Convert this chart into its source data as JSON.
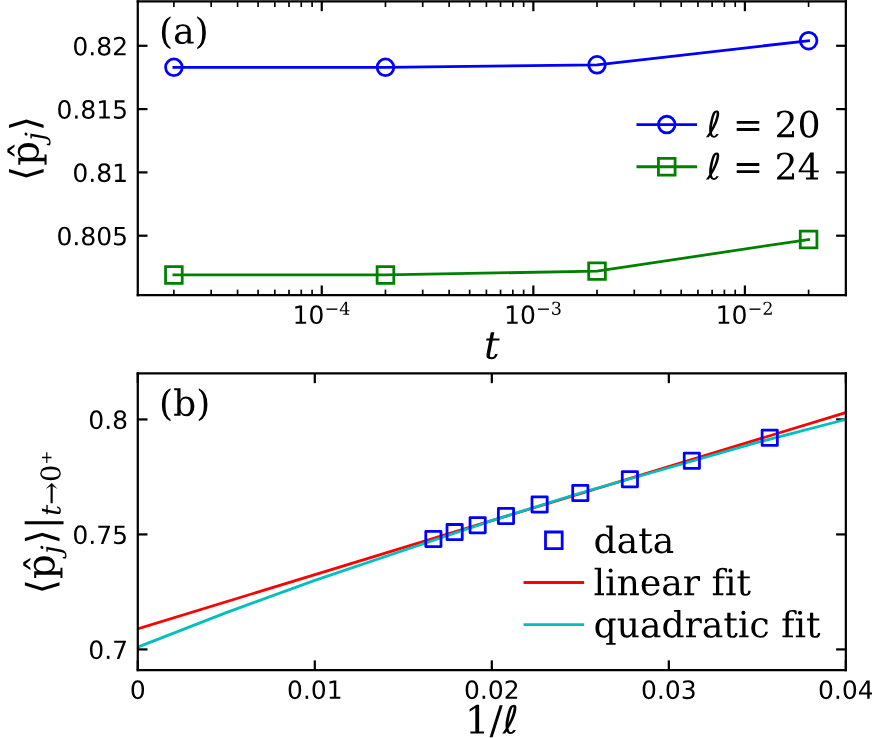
{
  "chart_data": [
    {
      "type": "line",
      "annotations": [
        "(a)"
      ],
      "xlabel": "t",
      "ylabel": "⟨p̂$_{j}$⟩",
      "log": "x",
      "x": [
        2e-05,
        0.0002,
        0.002,
        0.02
      ],
      "series": [
        {
          "name": "ℓ = 20",
          "color": "#0000ff",
          "marker": "circle",
          "values": [
            0.8183,
            0.8183,
            0.8185,
            0.8204
          ]
        },
        {
          "name": "ℓ = 24",
          "color": "#008000",
          "marker": "square",
          "values": [
            0.8019,
            0.8019,
            0.8022,
            0.8047
          ]
        }
      ],
      "xlim": [
        1.35e-05,
        0.03
      ],
      "xticks": [
        {
          "value": 0.0001,
          "label": "10$^{−4}$"
        },
        {
          "value": 0.001,
          "label": "10$^{−3}$"
        },
        {
          "value": 0.01,
          "label": "10$^{−2}$"
        }
      ],
      "ylim": [
        0.8003,
        0.8235
      ],
      "yticks": [
        0.805,
        0.81,
        0.815,
        0.82
      ],
      "legend": "right",
      "grid": false
    },
    {
      "type": "scatter",
      "annotations": [
        "(b)"
      ],
      "xlabel": "1/ℓ",
      "ylabel": "⟨p̂$_{j}$⟩|$_{t→0⁺}$",
      "series": [
        {
          "name": "data",
          "type": "scatter",
          "color": "#0000ff",
          "marker": "square",
          "x": [
            0.0167,
            0.0179,
            0.0192,
            0.0208,
            0.0227,
            0.025,
            0.0278,
            0.0313,
            0.0357
          ],
          "values": [
            0.748,
            0.751,
            0.754,
            0.758,
            0.763,
            0.768,
            0.774,
            0.782,
            0.792
          ]
        },
        {
          "name": "linear fit",
          "type": "line",
          "color": "#ff0000",
          "marker": "none",
          "x": [
            0,
            0.04
          ],
          "values": [
            0.709,
            0.803
          ]
        },
        {
          "name": "quadratic fit",
          "type": "line",
          "color": "#00bfbf",
          "marker": "none",
          "x": [
            0,
            0.005,
            0.01,
            0.015,
            0.02,
            0.025,
            0.03,
            0.035,
            0.04
          ],
          "values": [
            0.701,
            0.716,
            0.73,
            0.743,
            0.756,
            0.768,
            0.779,
            0.79,
            0.8
          ]
        }
      ],
      "xlim": [
        0,
        0.04
      ],
      "xticks": [
        0,
        0.01,
        0.02,
        0.03,
        0.04
      ],
      "ylim": [
        0.691,
        0.82
      ],
      "yticks": [
        0.7,
        0.75,
        0.8
      ],
      "legend": "bottom right",
      "grid": false
    }
  ]
}
